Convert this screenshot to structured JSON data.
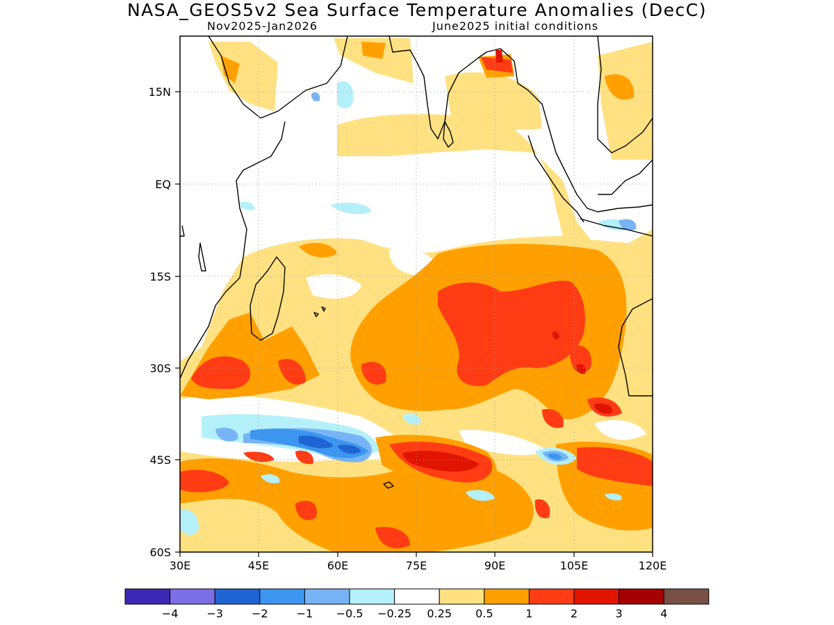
{
  "title": "NASA_GEOS5v2 Sea Surface Temperature Anomalies (DecC)",
  "subtitle_left": "Nov2025-Jan2026",
  "subtitle_right": "June2025 initial conditions",
  "map": {
    "lon_range": [
      30,
      120
    ],
    "lat_range": [
      -60,
      24
    ],
    "lon_ticks": [
      "30E",
      "45E",
      "60E",
      "75E",
      "90E",
      "105E",
      "120E"
    ],
    "lat_ticks": [
      "15N",
      "EQ",
      "15S",
      "30S",
      "45S",
      "60S"
    ],
    "grid": "dotted",
    "background_color": "#ffffff",
    "coastline_color": "#000000"
  },
  "colorbar": {
    "colors": [
      "#3c28b4",
      "#7d6ee6",
      "#1e64d2",
      "#3c96f0",
      "#78b4f5",
      "#b4f0fa",
      "#ffffff",
      "#ffe182",
      "#ffa000",
      "#ff3c14",
      "#e11400",
      "#a50000",
      "#785046"
    ],
    "labels": [
      "-4",
      "-3",
      "-2",
      "-1",
      "-0.5",
      "-0.25",
      "0.25",
      "0.5",
      "1",
      "2",
      "3",
      "4"
    ]
  }
}
